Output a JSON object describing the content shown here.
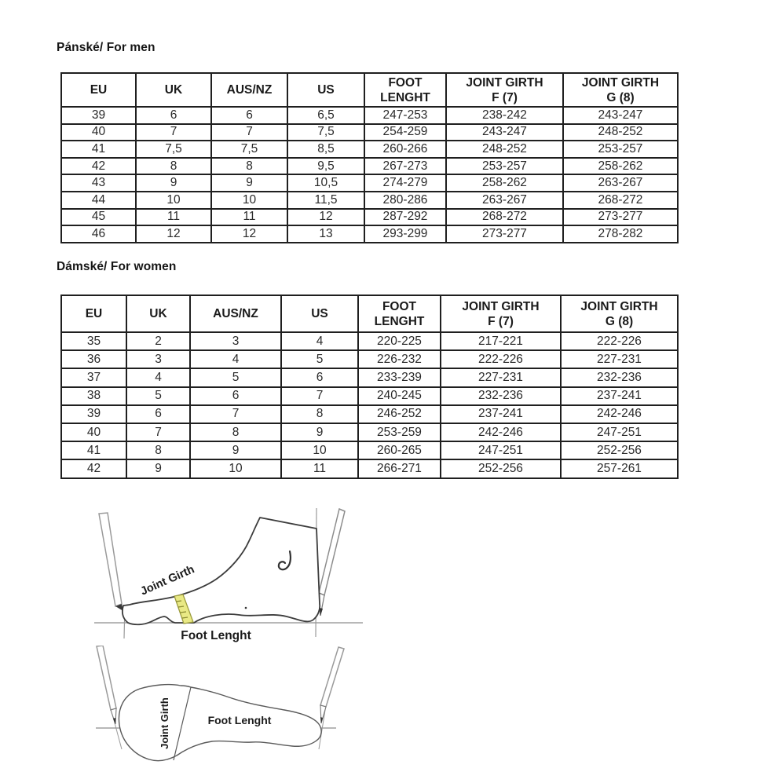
{
  "men": {
    "title": "Pánské/ For men",
    "table": {
      "headers": [
        [
          "EU"
        ],
        [
          "UK"
        ],
        [
          "AUS/NZ"
        ],
        [
          "US"
        ],
        [
          "FOOT",
          "LENGHT"
        ],
        [
          "JOINT GIRTH",
          "F (7)"
        ],
        [
          "JOINT GIRTH",
          "G (8)"
        ]
      ],
      "rows": [
        [
          "39",
          "6",
          "6",
          "6,5",
          "247-253",
          "238-242",
          "243-247"
        ],
        [
          "40",
          "7",
          "7",
          "7,5",
          "254-259",
          "243-247",
          "248-252"
        ],
        [
          "41",
          "7,5",
          "7,5",
          "8,5",
          "260-266",
          "248-252",
          "253-257"
        ],
        [
          "42",
          "8",
          "8",
          "9,5",
          "267-273",
          "253-257",
          "258-262"
        ],
        [
          "43",
          "9",
          "9",
          "10,5",
          "274-279",
          "258-262",
          "263-267"
        ],
        [
          "44",
          "10",
          "10",
          "11,5",
          "280-286",
          "263-267",
          "268-272"
        ],
        [
          "45",
          "11",
          "11",
          "12",
          "287-292",
          "268-272",
          "273-277"
        ],
        [
          "46",
          "12",
          "12",
          "13",
          "293-299",
          "273-277",
          "278-282"
        ]
      ]
    }
  },
  "women": {
    "title": "Dámské/ For women",
    "table": {
      "headers": [
        [
          "EU"
        ],
        [
          "UK"
        ],
        [
          "AUS/NZ"
        ],
        [
          "US"
        ],
        [
          "FOOT",
          "LENGHT"
        ],
        [
          "JOINT GIRTH",
          "F (7)"
        ],
        [
          "JOINT GIRTH",
          "G (8)"
        ]
      ],
      "rows": [
        [
          "35",
          "2",
          "3",
          "4",
          "220-225",
          "217-221",
          "222-226"
        ],
        [
          "36",
          "3",
          "4",
          "5",
          "226-232",
          "222-226",
          "227-231"
        ],
        [
          "37",
          "4",
          "5",
          "6",
          "233-239",
          "227-231",
          "232-236"
        ],
        [
          "38",
          "5",
          "6",
          "7",
          "240-245",
          "232-236",
          "237-241"
        ],
        [
          "39",
          "6",
          "7",
          "8",
          "246-252",
          "237-241",
          "242-246"
        ],
        [
          "40",
          "7",
          "8",
          "9",
          "253-259",
          "242-246",
          "247-251"
        ],
        [
          "41",
          "8",
          "9",
          "10",
          "260-265",
          "247-251",
          "252-256"
        ],
        [
          "42",
          "9",
          "10",
          "11",
          "266-271",
          "252-256",
          "257-261"
        ]
      ]
    }
  },
  "diagrams": {
    "side_view": {
      "joint_girth_label": "Joint Girth",
      "foot_length_label": "Foot Lenght",
      "tape_color": "#e9e985"
    },
    "top_view": {
      "joint_girth_label": "Joint Girth",
      "foot_length_label": "Foot Lenght"
    }
  }
}
